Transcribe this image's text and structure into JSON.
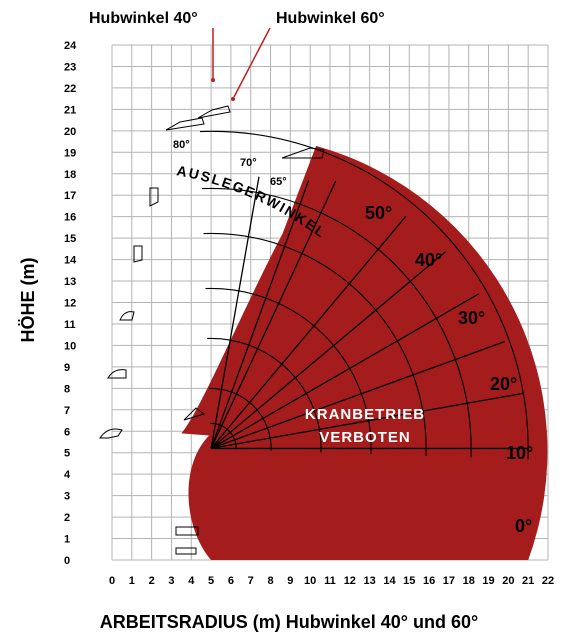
{
  "title": "ARBEITSRADIUS (m)  Hubwinkel 40° und 60°",
  "callouts": {
    "left": "Hubwinkel 40°",
    "right": "Hubwinkel 60°"
  },
  "forbidden_zone": {
    "line1": "KRANBETRIEB",
    "line2": "VERBOTEN"
  },
  "arc_label": "AUSLEGERWINKEL",
  "colors": {
    "forbidden": "#a51c1c",
    "grid": "#b3b3b3",
    "lines": "#000000"
  },
  "chart_data": {
    "type": "line",
    "title": "",
    "xlabel": "ARBEITSRADIUS (m)",
    "ylabel": "HÖHE (m)",
    "xlim": [
      0,
      22
    ],
    "ylim": [
      0,
      24
    ],
    "x_ticks": [
      "0",
      "1",
      "2",
      "3",
      "4",
      "5",
      "6",
      "7",
      "8",
      "9",
      "10",
      "11",
      "12",
      "13",
      "14",
      "15",
      "16",
      "17",
      "18",
      "19",
      "20",
      "21",
      "22"
    ],
    "y_ticks": [
      "0",
      "1",
      "2",
      "3",
      "4",
      "5",
      "6",
      "7",
      "8",
      "9",
      "10",
      "11",
      "12",
      "13",
      "14",
      "15",
      "16",
      "17",
      "18",
      "19",
      "20",
      "21",
      "22",
      "23",
      "24"
    ],
    "grid": true,
    "boom_angles_large": [
      "0°",
      "10°",
      "20°",
      "30°",
      "40°",
      "50°"
    ],
    "boom_angles_small": [
      "65°",
      "70°",
      "80°"
    ],
    "pivot": [
      5,
      5.2
    ],
    "forbidden_region": "Bereich außerhalb ca. 5 m Arbeitsradius, bis max. ca. 21 m Reichweite"
  }
}
